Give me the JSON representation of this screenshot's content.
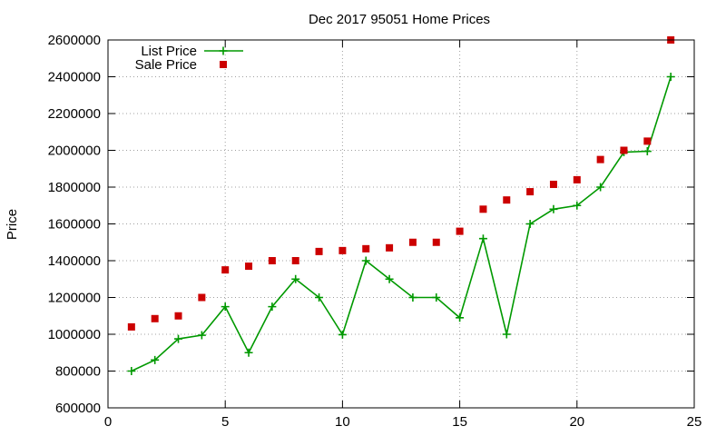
{
  "chart_data": {
    "type": "scatter",
    "title": "Dec 2017 95051 Home Prices",
    "xlabel": "",
    "ylabel": "Price",
    "xlim": [
      0,
      25
    ],
    "ylim": [
      600000,
      2600000
    ],
    "xticks": [
      0,
      5,
      10,
      15,
      20,
      25
    ],
    "yticks": [
      600000,
      800000,
      1000000,
      1200000,
      1400000,
      1600000,
      1800000,
      2000000,
      2200000,
      2400000,
      2600000
    ],
    "grid": true,
    "legend_position": "top-left",
    "x": [
      1,
      2,
      3,
      4,
      5,
      6,
      7,
      8,
      9,
      10,
      11,
      12,
      13,
      14,
      15,
      16,
      17,
      18,
      19,
      20,
      21,
      22,
      23,
      24
    ],
    "series": [
      {
        "name": "List Price",
        "style": "line-points",
        "color": "#009900",
        "values": [
          800000,
          860000,
          975000,
          995000,
          1150000,
          900000,
          1150000,
          1300000,
          1200000,
          998000,
          1400000,
          1300000,
          1200000,
          1200000,
          1090000,
          1520000,
          1000000,
          1600000,
          1680000,
          1700000,
          1800000,
          1990000,
          1995000,
          2400000
        ]
      },
      {
        "name": "Sale Price",
        "style": "points",
        "color": "#cc0000",
        "values": [
          1040000,
          1085000,
          1100000,
          1200000,
          1350000,
          1370000,
          1400000,
          1400000,
          1450000,
          1455000,
          1465000,
          1470000,
          1500000,
          1500000,
          1560000,
          1680000,
          1730000,
          1775000,
          1815000,
          1840000,
          1950000,
          2000000,
          2050000,
          2600000
        ]
      }
    ]
  }
}
